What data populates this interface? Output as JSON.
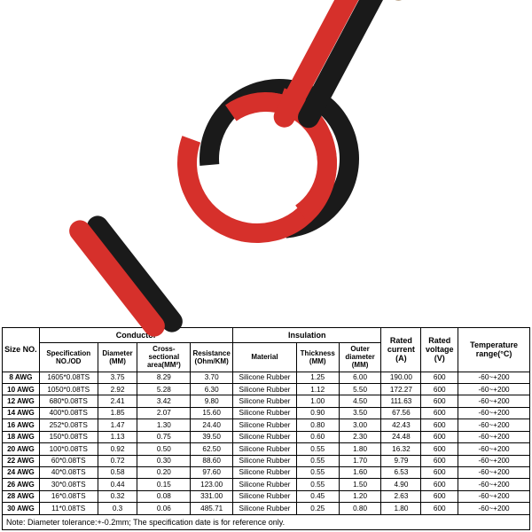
{
  "image": {
    "wire_colors": {
      "red": "#d6302b",
      "black": "#1a1a1a"
    },
    "tip_color": "#c4a888",
    "background": "#ffffff"
  },
  "table": {
    "border_color": "#000000",
    "font_family": "Arial",
    "header_fontsize_pt": 9,
    "body_fontsize_pt": 8,
    "groups": {
      "size": "Size NO.",
      "conductor": "Conductor",
      "insulation": "Insulation",
      "rated_current": "Rated current (A)",
      "rated_voltage": "Rated voltage (V)",
      "temp_range": "Temperature range(°C)"
    },
    "columns": {
      "spec": "Specification NO./OD",
      "diameter": "Diameter (MM)",
      "cross_section": "Cross-sectional area(MM²)",
      "resistance": "Resistance (Ohm/KM)",
      "material": "Material",
      "thickness": "Thickness (MM)",
      "outer_diameter": "Outer diameter (MM)"
    },
    "rows": [
      {
        "size": "8 AWG",
        "spec": "1605*0.08TS",
        "dia": "3.75",
        "area": "8.29",
        "res": "3.70",
        "mat": "Silicone Rubber",
        "thk": "1.25",
        "out": "6.00",
        "cur": "190.00",
        "vol": "600",
        "tmp": "-60~+200"
      },
      {
        "size": "10 AWG",
        "spec": "1050*0.08TS",
        "dia": "2.92",
        "area": "5.28",
        "res": "6.30",
        "mat": "Silicone Rubber",
        "thk": "1.12",
        "out": "5.50",
        "cur": "172.27",
        "vol": "600",
        "tmp": "-60~+200"
      },
      {
        "size": "12 AWG",
        "spec": "680*0.08TS",
        "dia": "2.41",
        "area": "3.42",
        "res": "9.80",
        "mat": "Silicone Rubber",
        "thk": "1.00",
        "out": "4.50",
        "cur": "111.63",
        "vol": "600",
        "tmp": "-60~+200"
      },
      {
        "size": "14 AWG",
        "spec": "400*0.08TS",
        "dia": "1.85",
        "area": "2.07",
        "res": "15.60",
        "mat": "Silicone Rubber",
        "thk": "0.90",
        "out": "3.50",
        "cur": "67.56",
        "vol": "600",
        "tmp": "-60~+200"
      },
      {
        "size": "16 AWG",
        "spec": "252*0.08TS",
        "dia": "1.47",
        "area": "1.30",
        "res": "24.40",
        "mat": "Silicone Rubber",
        "thk": "0.80",
        "out": "3.00",
        "cur": "42.43",
        "vol": "600",
        "tmp": "-60~+200"
      },
      {
        "size": "18 AWG",
        "spec": "150*0.08TS",
        "dia": "1.13",
        "area": "0.75",
        "res": "39.50",
        "mat": "Silicone Rubber",
        "thk": "0.60",
        "out": "2.30",
        "cur": "24.48",
        "vol": "600",
        "tmp": "-60~+200"
      },
      {
        "size": "20 AWG",
        "spec": "100*0.08TS",
        "dia": "0.92",
        "area": "0.50",
        "res": "62.50",
        "mat": "Silicone Rubber",
        "thk": "0.55",
        "out": "1.80",
        "cur": "16.32",
        "vol": "600",
        "tmp": "-60~+200"
      },
      {
        "size": "22 AWG",
        "spec": "60*0.08TS",
        "dia": "0.72",
        "area": "0.30",
        "res": "88.60",
        "mat": "Silicone Rubber",
        "thk": "0.55",
        "out": "1.70",
        "cur": "9.79",
        "vol": "600",
        "tmp": "-60~+200"
      },
      {
        "size": "24 AWG",
        "spec": "40*0.08TS",
        "dia": "0.58",
        "area": "0.20",
        "res": "97.60",
        "mat": "Silicone Rubber",
        "thk": "0.55",
        "out": "1.60",
        "cur": "6.53",
        "vol": "600",
        "tmp": "-60~+200"
      },
      {
        "size": "26 AWG",
        "spec": "30*0.08TS",
        "dia": "0.44",
        "area": "0.15",
        "res": "123.00",
        "mat": "Silicone Rubber",
        "thk": "0.55",
        "out": "1.50",
        "cur": "4.90",
        "vol": "600",
        "tmp": "-60~+200"
      },
      {
        "size": "28 AWG",
        "spec": "16*0.08TS",
        "dia": "0.32",
        "area": "0.08",
        "res": "331.00",
        "mat": "Silicone Rubber",
        "thk": "0.45",
        "out": "1.20",
        "cur": "2.63",
        "vol": "600",
        "tmp": "-60~+200"
      },
      {
        "size": "30 AWG",
        "spec": "11*0.08TS",
        "dia": "0.3",
        "area": "0.06",
        "res": "485.71",
        "mat": "Silicone Rubber",
        "thk": "0.25",
        "out": "0.80",
        "cur": "1.80",
        "vol": "600",
        "tmp": "-60~+200"
      }
    ],
    "note": "Note: Diameter tolerance:+-0.2mm; The specification date is for reference only."
  }
}
